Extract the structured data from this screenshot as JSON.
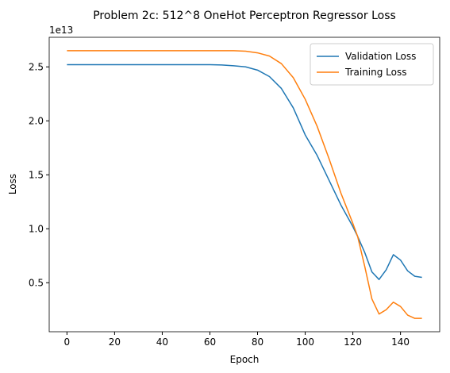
{
  "chart_data": {
    "type": "line",
    "title": "Problem 2c: 512^8 OneHot Perceptron Regressor Loss",
    "x_label": "Epoch",
    "y_label": "Loss",
    "y_offset_label": "1e13",
    "x": [
      0,
      10,
      20,
      30,
      40,
      50,
      60,
      65,
      70,
      75,
      80,
      85,
      90,
      95,
      100,
      105,
      110,
      115,
      120,
      122,
      125,
      128,
      131,
      134,
      137,
      140,
      143,
      146,
      149
    ],
    "series": [
      {
        "name": "Validation Loss",
        "color": "#1f77b4",
        "values": [
          2.52,
          2.52,
          2.52,
          2.52,
          2.52,
          2.52,
          2.52,
          2.518,
          2.51,
          2.5,
          2.47,
          2.41,
          2.3,
          2.12,
          1.87,
          1.68,
          1.45,
          1.22,
          1.02,
          0.93,
          0.78,
          0.6,
          0.53,
          0.62,
          0.76,
          0.71,
          0.61,
          0.56,
          0.55
        ]
      },
      {
        "name": "Training Loss",
        "color": "#ff7f0e",
        "values": [
          2.65,
          2.65,
          2.65,
          2.65,
          2.65,
          2.65,
          2.65,
          2.65,
          2.65,
          2.645,
          2.63,
          2.6,
          2.53,
          2.4,
          2.2,
          1.95,
          1.65,
          1.33,
          1.05,
          0.93,
          0.65,
          0.35,
          0.21,
          0.25,
          0.32,
          0.28,
          0.2,
          0.17,
          0.17
        ]
      }
    ],
    "xlim": [
      -7.45,
      156.45
    ],
    "xticks": [
      0,
      20,
      40,
      60,
      80,
      100,
      120,
      140
    ],
    "ylim": [
      0.046,
      2.774
    ],
    "yticks": [
      0.5,
      1.0,
      1.5,
      2.0,
      2.5
    ],
    "legend": "upper right",
    "grid": false
  }
}
